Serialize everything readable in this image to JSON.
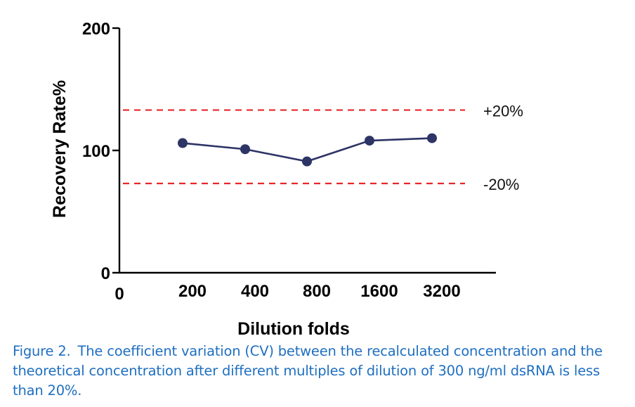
{
  "chart_data": {
    "type": "line",
    "title": "",
    "xlabel": "Dilution folds",
    "ylabel": "Recovery Rate%",
    "x_origin_label": "0",
    "categories": [
      "200",
      "400",
      "800",
      "1600",
      "3200"
    ],
    "series": [
      {
        "values": [
          106,
          101,
          91,
          108,
          110
        ],
        "color": "#2d3466"
      }
    ],
    "ylim": [
      0,
      200
    ],
    "yticks": [
      0,
      100,
      200
    ],
    "reference_lines": [
      {
        "value": 133,
        "label": "+20%",
        "color": "#e8262a",
        "style": "dashed"
      },
      {
        "value": 73,
        "label": "-20%",
        "color": "#e8262a",
        "style": "dashed"
      }
    ],
    "grid": false,
    "legend": "none"
  },
  "caption": {
    "label": "Figure 2.",
    "text": "The coefficient variation (CV) between the recalculated concentration and the theoretical concentration after different multiples of dilution of 300 ng/ml dsRNA is less than 20%."
  }
}
